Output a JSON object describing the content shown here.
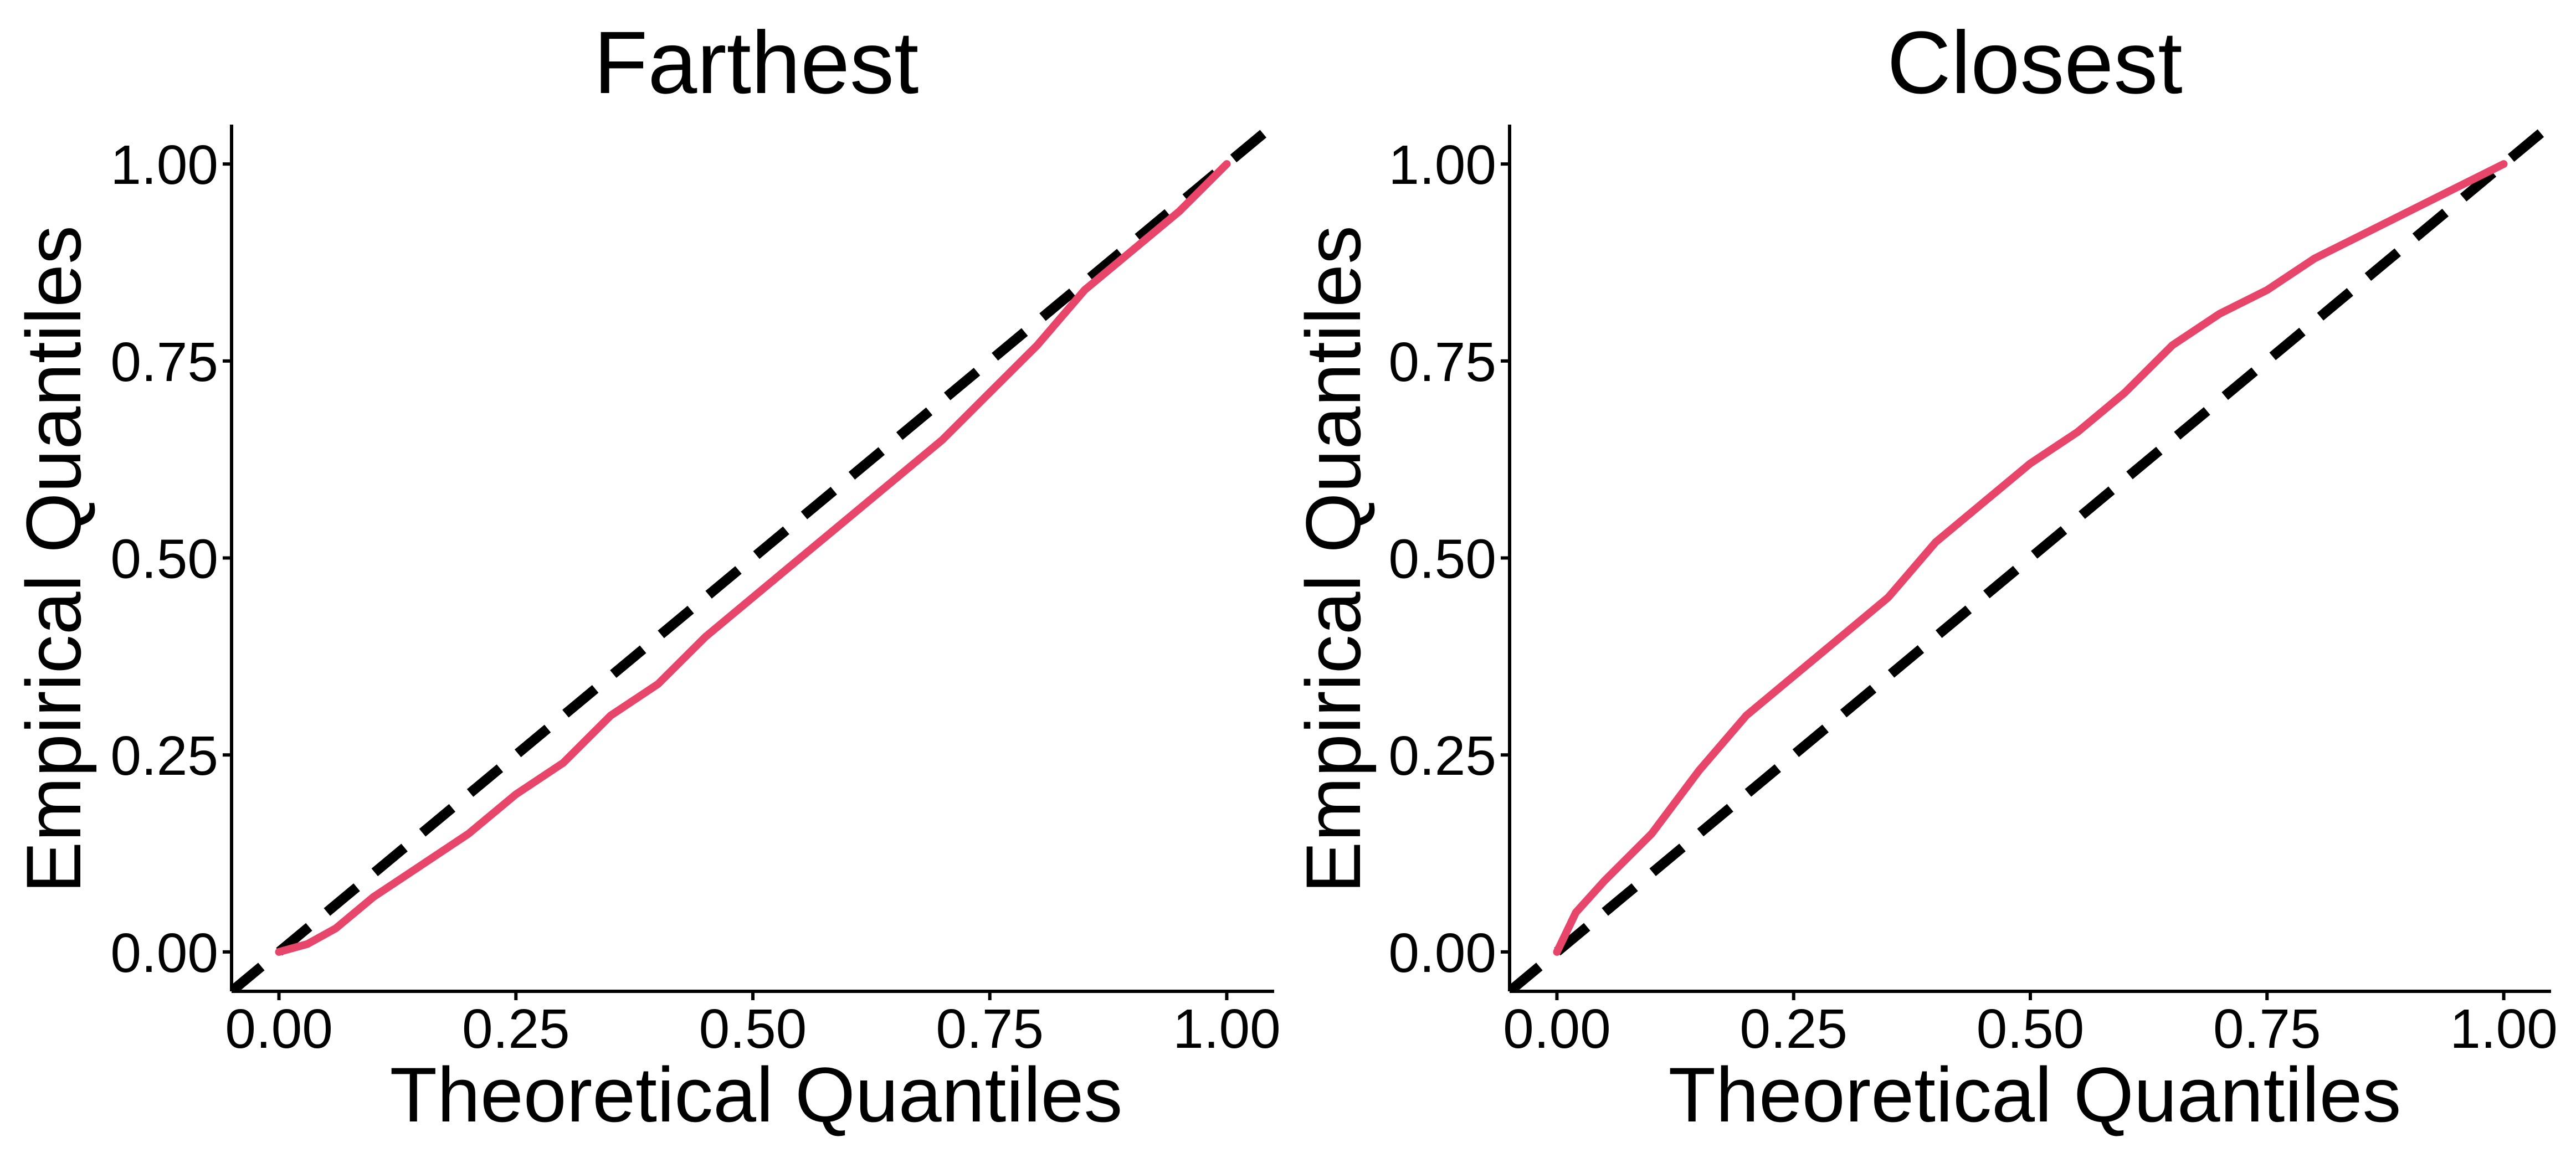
{
  "colors": {
    "series": "#e8456b",
    "reference": "#000000",
    "axis": "#000000"
  },
  "chart_data": [
    {
      "type": "line",
      "title": "Farthest",
      "xlabel": "Theoretical Quantiles",
      "ylabel": "Empirical Quantiles",
      "xlim": [
        -0.05,
        1.05
      ],
      "ylim": [
        -0.05,
        1.05
      ],
      "xticks": [
        "0.00",
        "0.25",
        "0.50",
        "0.75",
        "1.00"
      ],
      "yticks": [
        "0.00",
        "0.25",
        "0.50",
        "0.75",
        "1.00"
      ],
      "grid": false,
      "reference_line": {
        "slope": 1,
        "intercept": 0,
        "style": "dashed"
      },
      "series": [
        {
          "x": [
            0.0,
            0.03,
            0.06,
            0.1,
            0.15,
            0.2,
            0.25,
            0.3,
            0.35,
            0.4,
            0.45,
            0.5,
            0.55,
            0.6,
            0.65,
            0.7,
            0.75,
            0.8,
            0.85,
            0.9,
            0.95,
            1.0
          ],
          "y": [
            0.0,
            0.01,
            0.03,
            0.07,
            0.11,
            0.15,
            0.2,
            0.24,
            0.3,
            0.34,
            0.4,
            0.45,
            0.5,
            0.55,
            0.6,
            0.65,
            0.71,
            0.77,
            0.84,
            0.89,
            0.94,
            1.0
          ]
        }
      ]
    },
    {
      "type": "line",
      "title": "Closest",
      "xlabel": "Theoretical Quantiles",
      "ylabel": "Empirical Quantiles",
      "xlim": [
        -0.05,
        1.05
      ],
      "ylim": [
        -0.05,
        1.05
      ],
      "xticks": [
        "0.00",
        "0.25",
        "0.50",
        "0.75",
        "1.00"
      ],
      "yticks": [
        "0.00",
        "0.25",
        "0.50",
        "0.75",
        "1.00"
      ],
      "grid": false,
      "reference_line": {
        "slope": 1,
        "intercept": 0,
        "style": "dashed"
      },
      "series": [
        {
          "x": [
            0.0,
            0.02,
            0.05,
            0.1,
            0.15,
            0.2,
            0.25,
            0.3,
            0.35,
            0.4,
            0.45,
            0.5,
            0.55,
            0.6,
            0.65,
            0.7,
            0.75,
            0.8,
            0.85,
            0.9,
            0.95,
            1.0
          ],
          "y": [
            0.0,
            0.05,
            0.09,
            0.15,
            0.23,
            0.3,
            0.35,
            0.4,
            0.45,
            0.52,
            0.57,
            0.62,
            0.66,
            0.71,
            0.77,
            0.81,
            0.84,
            0.88,
            0.91,
            0.94,
            0.97,
            1.0
          ]
        }
      ]
    }
  ]
}
